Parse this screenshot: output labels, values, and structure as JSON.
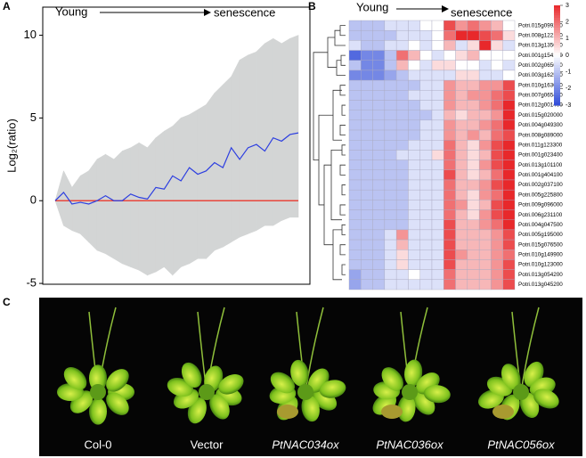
{
  "chart_data": [
    {
      "type": "line",
      "panel_label": "A",
      "ylabel": "Log₂(ratio)",
      "start_label": "Young",
      "end_label": "senescence",
      "ylim": [
        -5.05,
        11.7
      ],
      "yticks": [
        -5,
        0,
        5,
        10
      ],
      "reference_line": {
        "value": 0,
        "color": "#e8463c"
      },
      "envelope": {
        "color": "#d3d5d5",
        "upper": [
          0,
          1.8,
          0.8,
          1.5,
          1.8,
          2.5,
          2.8,
          2.5,
          3,
          3.2,
          3.5,
          3.2,
          3.8,
          4.2,
          4.5,
          5,
          5.2,
          5.5,
          5.8,
          6.5,
          7,
          7.5,
          8.5,
          8.8,
          9,
          9.5,
          9.8,
          9.5,
          9.8,
          10
        ],
        "lower": [
          0,
          -1.5,
          -1.8,
          -2,
          -2.5,
          -3,
          -3.2,
          -3.5,
          -3.8,
          -4,
          -4.2,
          -4.5,
          -4.3,
          -4,
          -4.5,
          -4,
          -3.8,
          -3.5,
          -3.5,
          -3,
          -2.8,
          -2.5,
          -2.2,
          -2,
          -1.8,
          -1.5,
          -1.5,
          -1.2,
          -1,
          -1
        ]
      },
      "series": [
        {
          "color": "#2d3fe0",
          "values": [
            0,
            0.5,
            -0.2,
            -0.1,
            -0.2,
            0,
            0.3,
            0,
            0,
            0.4,
            0.2,
            0.1,
            0.8,
            0.7,
            1.5,
            1.2,
            2.0,
            1.6,
            1.8,
            2.3,
            2.0,
            3.2,
            2.5,
            3.2,
            3.4,
            3.0,
            3.8,
            3.6,
            4.0,
            4.1
          ]
        }
      ]
    },
    {
      "type": "heatmap",
      "panel_label": "B",
      "start_label": "Young",
      "end_label": "senescence",
      "zlim": [
        -3,
        3
      ],
      "zticks": [
        3,
        2,
        1,
        0,
        -1,
        -2,
        -3
      ],
      "colors": {
        "low": "#2f4bd8",
        "mid": "#ffffff",
        "high": "#e8282b"
      },
      "rows": [
        "Potri.015g099200",
        "Potri.008g122100",
        "Potri.013g135600",
        "Potri.001g154100",
        "Potri.002g065600",
        "Potri.003g162500",
        "Potri.010g163000",
        "Potri.007g065400",
        "Potri.012g001400",
        "Potri.015g020000",
        "Potri.004g049300",
        "Potri.008g089000",
        "Potri.011g123300",
        "Potri.001g023400",
        "Potri.013g101100",
        "Potri.001g404100",
        "Potri.002g037100",
        "Potri.005g225800",
        "Potri.009g096000",
        "Potri.006g231100",
        "Potri.004g047500",
        "Potri.005g195000",
        "Potri.015g076500",
        "Potri.010g149900",
        "Potri.010g123000",
        "Potri.013g054200",
        "Potri.013g045200"
      ],
      "values": [
        [
          -1,
          -1,
          -1,
          -0.5,
          -0.5,
          -0.5,
          0,
          0,
          2.5,
          1.5,
          2,
          1.5,
          1,
          0
        ],
        [
          -1,
          -1,
          -1,
          -1,
          -0.5,
          -0.5,
          -0.5,
          0,
          2,
          3,
          3,
          2.5,
          2,
          0.5
        ],
        [
          -0.5,
          -1,
          -1,
          -0.5,
          -0.5,
          0,
          -0.5,
          0,
          1,
          -0.5,
          0.5,
          3,
          0.5,
          -0.5
        ],
        [
          -2.5,
          -2,
          -2,
          -1,
          2,
          1,
          0,
          -0.5,
          0,
          0.5,
          1,
          0,
          0,
          0
        ],
        [
          -1,
          -2,
          -2,
          -1,
          1,
          0,
          -0.5,
          0.5,
          0.5,
          0,
          0,
          -0.5,
          0,
          -0.5
        ],
        [
          -2,
          -2,
          -2,
          -1.5,
          -1,
          -0.5,
          -0.5,
          -0.5,
          -0.5,
          0.5,
          0.5,
          -0.5,
          -0.5,
          0
        ],
        [
          -1,
          -1,
          -1,
          -1,
          -1,
          -1,
          -0.5,
          -0.5,
          1.5,
          1,
          1,
          1.5,
          1.5,
          2.5
        ],
        [
          -1,
          -1,
          -1,
          -1,
          -1,
          -0.5,
          -0.5,
          -0.5,
          1.5,
          1,
          1.5,
          1.5,
          2,
          2.5
        ],
        [
          -1,
          -1,
          -1,
          -1,
          -1,
          -1,
          -0.5,
          -0.5,
          1.5,
          1,
          1,
          1.5,
          2,
          3
        ],
        [
          -1,
          -1,
          -1,
          -1,
          -1,
          -1,
          -1,
          -0.5,
          1,
          0.5,
          1,
          1,
          1.5,
          3
        ],
        [
          -1,
          -1,
          -1,
          -1,
          -1,
          -1,
          -0.5,
          -0.5,
          1.5,
          1,
          1,
          1.5,
          2,
          3
        ],
        [
          -1,
          -1,
          -1,
          -1,
          -1,
          -1,
          -0.5,
          -0.5,
          1.5,
          1,
          1.5,
          1,
          2,
          2.5
        ],
        [
          -1,
          -1,
          -1,
          -1,
          -1,
          -0.5,
          -0.5,
          -0.5,
          2,
          1,
          0.5,
          1.5,
          2.5,
          3
        ],
        [
          -1,
          -1,
          -1,
          -1,
          -0.5,
          -0.5,
          -0.5,
          0.5,
          2,
          1,
          0.5,
          1,
          2.5,
          3
        ],
        [
          -1,
          -1,
          -1,
          -1,
          -1,
          -0.5,
          -0.5,
          -0.5,
          2,
          1,
          0.5,
          1.5,
          2.5,
          3
        ],
        [
          -1,
          -1,
          -1,
          -1,
          -1,
          -0.5,
          -0.5,
          -0.5,
          2.5,
          1,
          0.5,
          1,
          2,
          3
        ],
        [
          -1,
          -1,
          -1,
          -1,
          -1,
          -0.5,
          -0.5,
          -0.5,
          2,
          1,
          1,
          1.5,
          2.5,
          3
        ],
        [
          -1,
          -1,
          -1,
          -1,
          -1,
          -0.5,
          -0.5,
          -0.5,
          2,
          1,
          0.5,
          1.5,
          2,
          3
        ],
        [
          -1,
          -1,
          -1,
          -1,
          -1,
          -0.5,
          -0.5,
          -0.5,
          2,
          1.5,
          0.5,
          1,
          2.5,
          3
        ],
        [
          -1,
          -1,
          -1,
          -1,
          -1,
          -0.5,
          -0.5,
          -0.5,
          2,
          1,
          0.5,
          1.5,
          2.5,
          3
        ],
        [
          -1,
          -1,
          -1,
          -1,
          -1,
          -0.5,
          -0.5,
          -0.5,
          2.5,
          1,
          1,
          1.5,
          2,
          3
        ],
        [
          -1,
          -1,
          -1,
          -0.5,
          1.5,
          -0.5,
          -0.5,
          -0.5,
          2.5,
          1,
          1,
          1,
          1.5,
          2.5
        ],
        [
          -1,
          -1,
          -1,
          -0.5,
          1,
          -0.5,
          -0.5,
          -0.5,
          2.5,
          1,
          1,
          1,
          1.5,
          2.5
        ],
        [
          -1,
          -1,
          -1,
          -0.5,
          0.5,
          -0.5,
          -0.5,
          -0.5,
          2.5,
          1.5,
          1,
          1,
          1.5,
          2
        ],
        [
          -1,
          -1,
          -1,
          -0.5,
          0.5,
          -0.5,
          -0.5,
          -0.5,
          2.5,
          1,
          1,
          1,
          1.5,
          2.5
        ],
        [
          -1.5,
          -1,
          -1,
          -0.5,
          -0.5,
          0,
          -0.5,
          -0.5,
          2,
          1,
          1,
          1,
          1.5,
          2.5
        ],
        [
          -1.5,
          -1,
          -1,
          -0.5,
          -0.5,
          -0.5,
          -0.5,
          -0.5,
          2,
          1,
          1,
          1,
          1.5,
          2.5
        ]
      ]
    }
  ],
  "photo": {
    "panel_label": "C",
    "captions": [
      "Col-0",
      "Vector",
      "PtNAC034ox",
      "PtNAC036ox",
      "PtNAC056ox"
    ]
  }
}
